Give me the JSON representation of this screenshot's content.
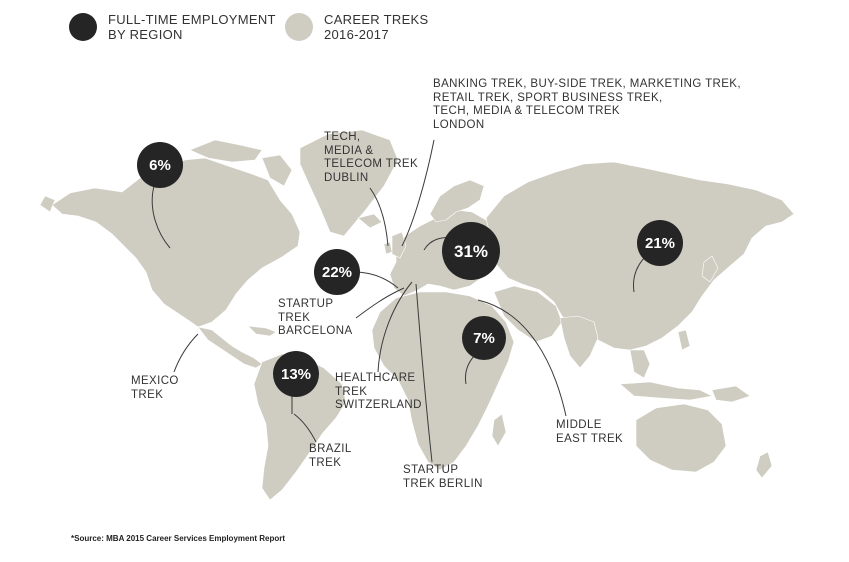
{
  "legend": {
    "employment_label": "FULL-TIME EMPLOYMENT\nBY REGION",
    "treks_label": "CAREER TREKS\n2016-2017"
  },
  "colors": {
    "bubble": "#252525",
    "land": "#cfcdc2",
    "leader": "#3a3a3a",
    "text": "#333333"
  },
  "employment_bubbles": [
    {
      "region": "north-america",
      "value": "6%"
    },
    {
      "region": "latin-america",
      "value": "13%"
    },
    {
      "region": "western-europe",
      "value": "22%"
    },
    {
      "region": "europe",
      "value": "31%"
    },
    {
      "region": "africa",
      "value": "7%"
    },
    {
      "region": "asia",
      "value": "21%"
    }
  ],
  "treks": {
    "london": "BANKING TREK, BUY-SIDE TREK, MARKETING TREK,\nRETAIL TREK, SPORT BUSINESS TREK,\nTECH, MEDIA & TELECOM TREK\nLONDON",
    "dublin": "TECH,\nMEDIA &\nTELECOM TREK\nDUBLIN",
    "barcelona": "STARTUP\nTREK\nBARCELONA",
    "mexico": "MEXICO\nTREK",
    "switzerland": "HEALTHCARE\nTREK\nSWITZERLAND",
    "brazil": "BRAZIL\nTREK",
    "berlin": "STARTUP\nTREK BERLIN",
    "middle_east": "MIDDLE\nEAST TREK"
  },
  "source": "*Source: MBA 2015 Career Services Employment Report"
}
